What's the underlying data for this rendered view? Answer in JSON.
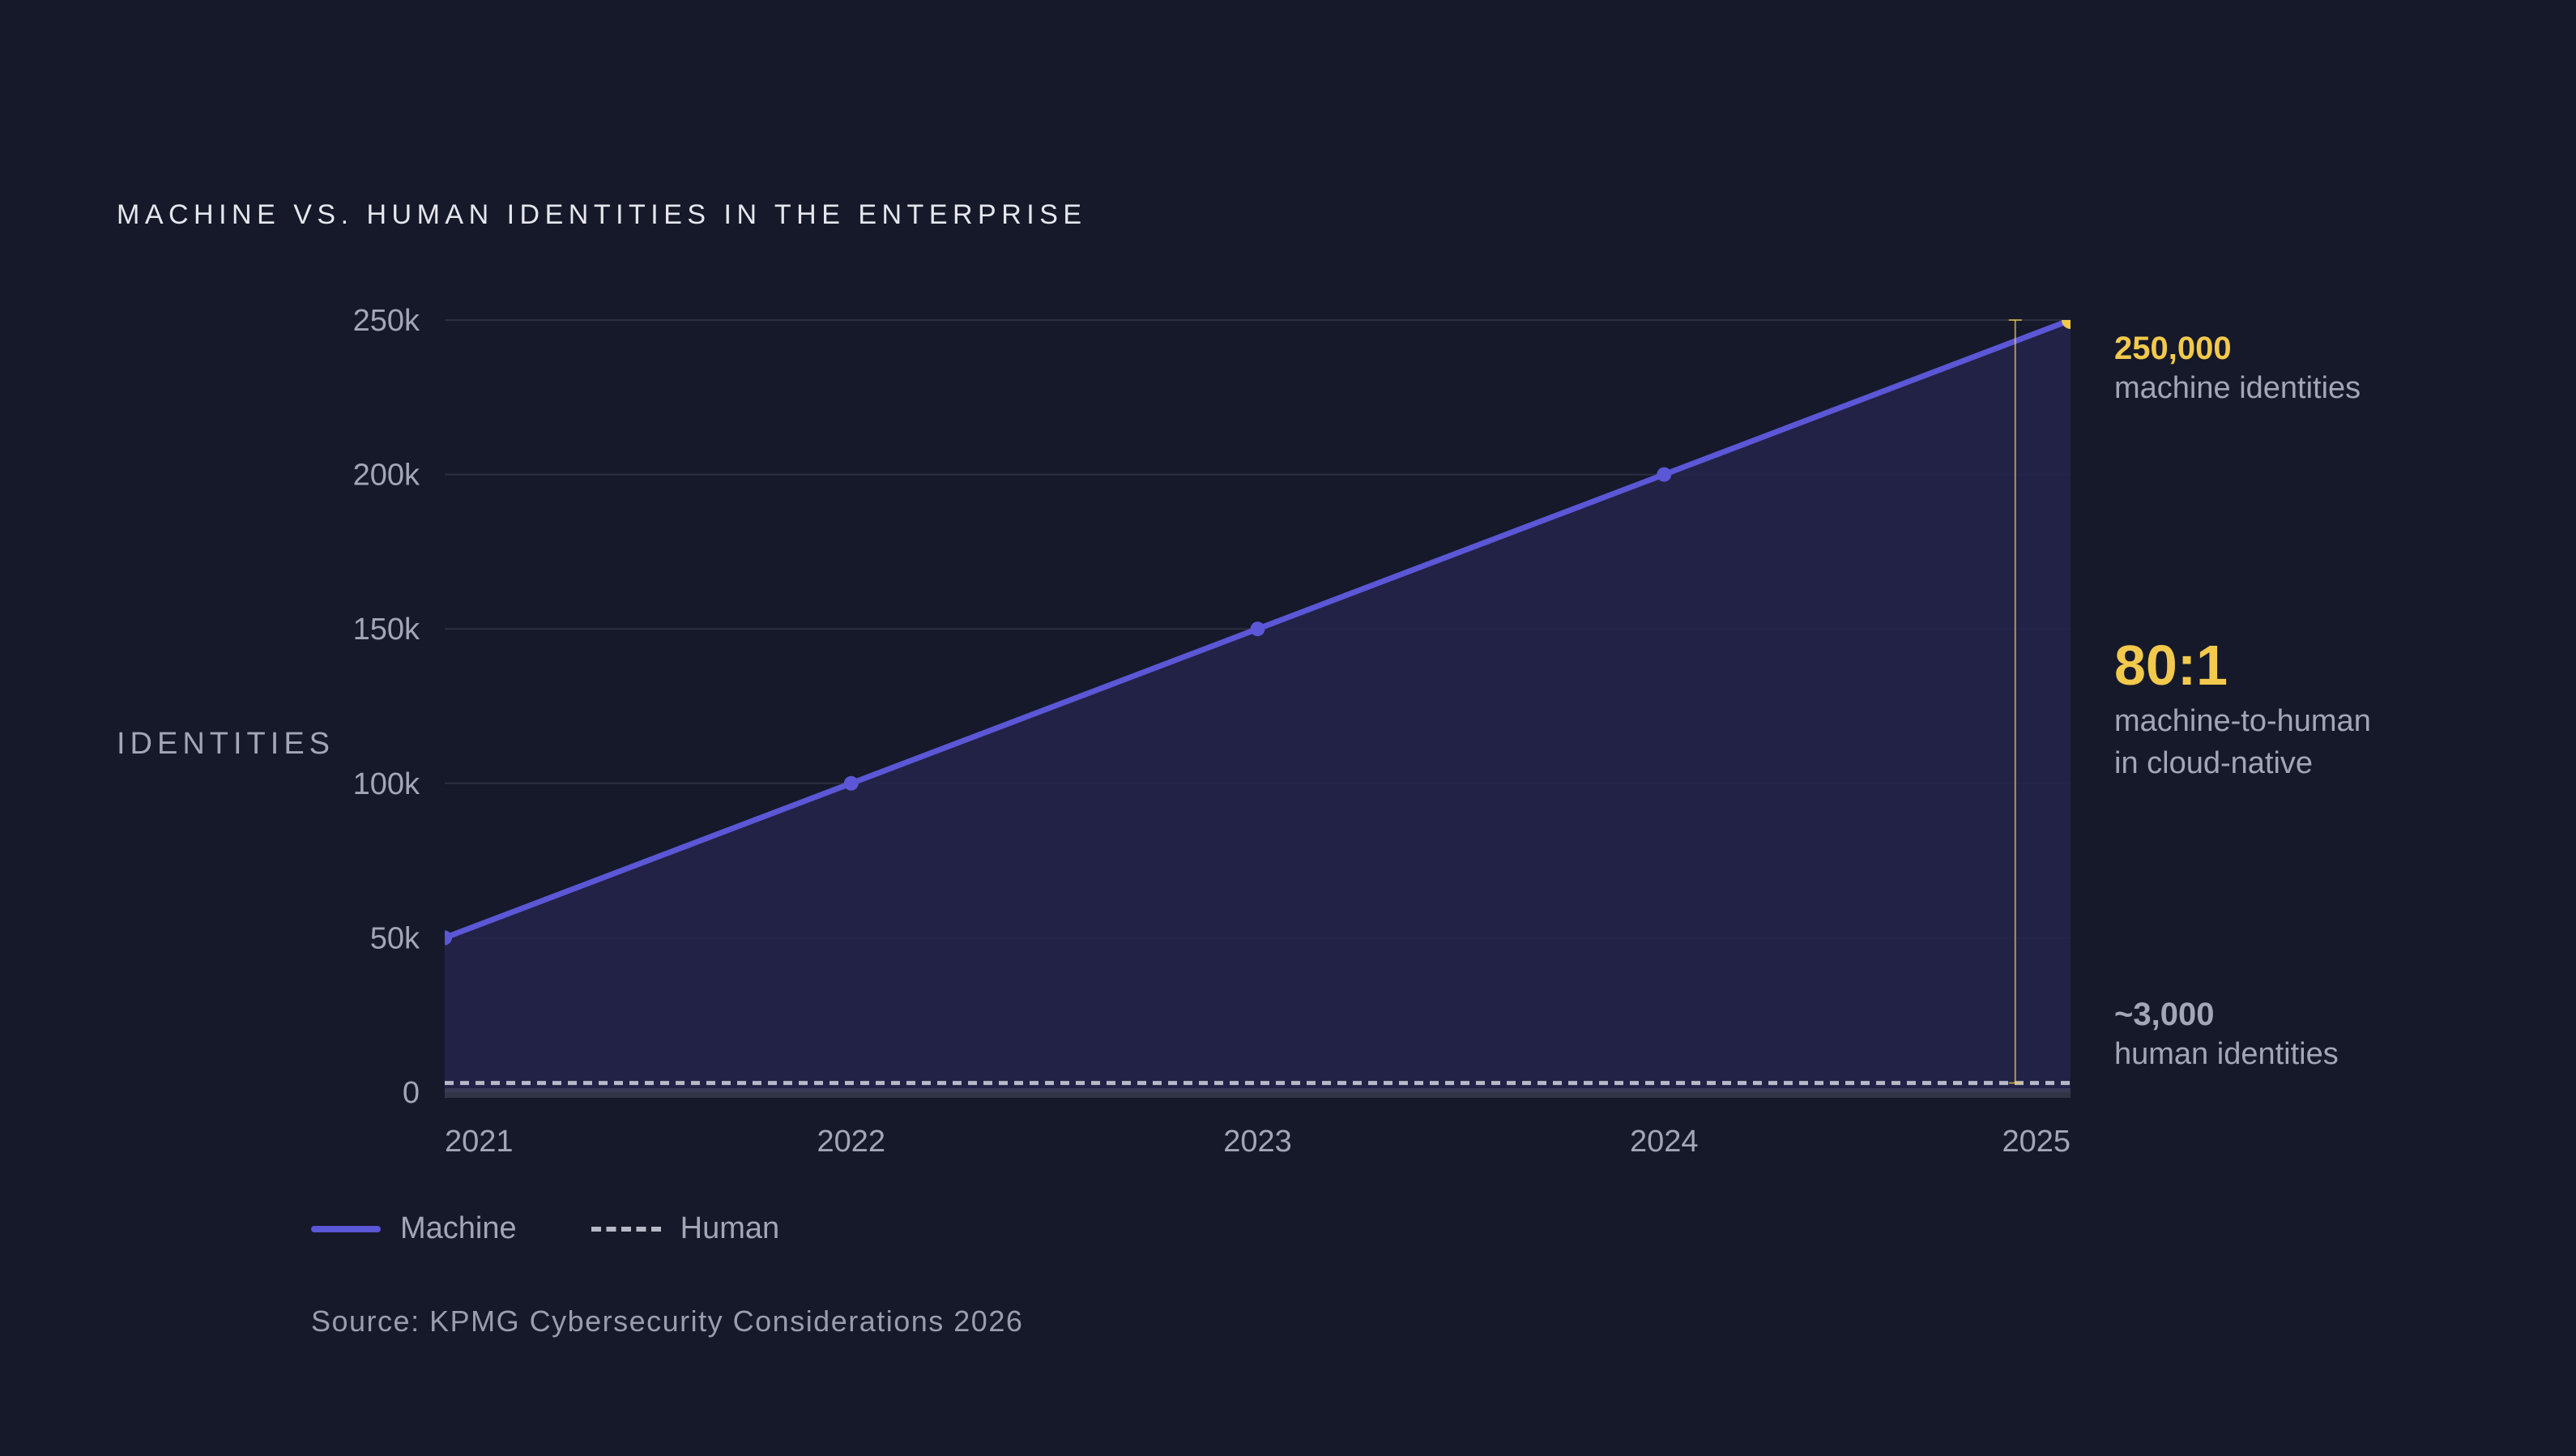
{
  "chart_data": {
    "type": "area",
    "title": "MACHINE VS. HUMAN IDENTITIES IN THE ENTERPRISE",
    "ylabel": "IDENTITIES",
    "xlabel": "",
    "x": [
      2021,
      2022,
      2023,
      2024,
      2025
    ],
    "x_tick_labels": [
      "2021",
      "2022",
      "2023",
      "2024",
      "2025"
    ],
    "ylim": [
      0,
      250000
    ],
    "y_ticks": [
      0,
      50000,
      100000,
      150000,
      200000,
      250000
    ],
    "y_tick_labels": [
      "0",
      "50k",
      "100k",
      "150k",
      "200k",
      "250k"
    ],
    "grid": true,
    "series": [
      {
        "name": "Machine",
        "values": [
          50000,
          100000,
          150000,
          200000,
          250000
        ],
        "color": "#5b57d6",
        "style": "solid"
      },
      {
        "name": "Human",
        "values": [
          3000,
          3000,
          3000,
          3000,
          3000
        ],
        "color": "#b7b9c6",
        "style": "dashed"
      }
    ],
    "legend": {
      "placement": "bottom-left",
      "items": [
        {
          "label": "Machine",
          "style": "solid",
          "color": "#5b57d6"
        },
        {
          "label": "Human",
          "style": "dashed",
          "color": "#b7b9c6"
        }
      ]
    },
    "annotations": {
      "top": {
        "value": "250,000",
        "label": "machine identities",
        "color": "#f2c94c"
      },
      "ratio": {
        "value": "80:1",
        "label_line1": "machine-to-human",
        "label_line2": "in cloud-native",
        "color": "#f2c94c"
      },
      "bottom": {
        "value": "~3,000",
        "label": "human identities",
        "color": "#a3a6b6"
      }
    },
    "source": "Source: KPMG Cybersecurity Considerations 2026"
  },
  "colors": {
    "background": "#161929",
    "accent": "#f2c94c",
    "machine": "#5b57d6",
    "area_fill": "#24244a",
    "grid": "#2c2f40"
  }
}
